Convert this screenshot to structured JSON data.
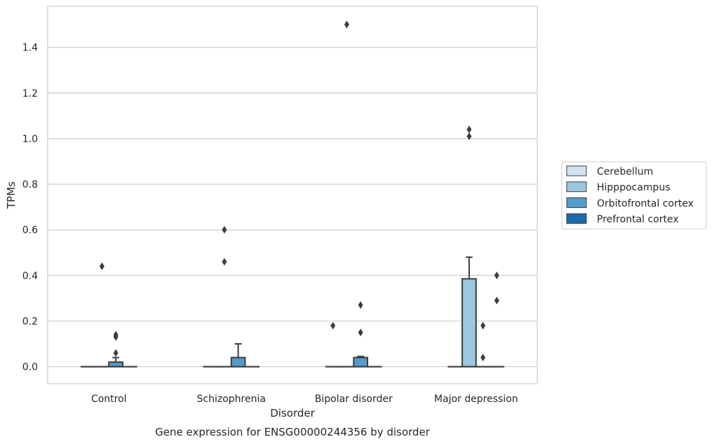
{
  "chart_data": {
    "type": "box",
    "xlabel": "Disorder",
    "ylabel": "TPMs",
    "caption": "Gene expression for ENSG00000244356 by disorder",
    "ylim": [
      -0.075,
      1.58
    ],
    "yticks": [
      "0.0",
      "0.2",
      "0.4",
      "0.6",
      "0.8",
      "1.0",
      "1.2",
      "1.4"
    ],
    "grid": "horizontal",
    "legend_position": "right",
    "categories": [
      "Control",
      "Schizophrenia",
      "Bipolar disorder",
      "Major depression"
    ],
    "series": [
      {
        "name": "Cerebellum",
        "color": "#d0e2f1",
        "boxes": [
          {
            "q1": 0,
            "median": 0,
            "q3": 0,
            "whisker_low": 0,
            "whisker_high": 0,
            "outliers": []
          },
          {
            "q1": 0,
            "median": 0,
            "q3": 0,
            "whisker_low": 0,
            "whisker_high": 0,
            "outliers": []
          },
          {
            "q1": 0,
            "median": 0,
            "q3": 0,
            "whisker_low": 0,
            "whisker_high": 0,
            "outliers": [
              0.18
            ]
          },
          {
            "q1": 0,
            "median": 0,
            "q3": 0,
            "whisker_low": 0,
            "whisker_high": 0,
            "outliers": []
          }
        ]
      },
      {
        "name": "Hipppocampus",
        "color": "#9ac8e0",
        "boxes": [
          {
            "q1": 0,
            "median": 0,
            "q3": 0,
            "whisker_low": 0,
            "whisker_high": 0,
            "outliers": [
              0.44
            ]
          },
          {
            "q1": 0,
            "median": 0,
            "q3": 0,
            "whisker_low": 0,
            "whisker_high": 0,
            "outliers": [
              0.46,
              0.6
            ]
          },
          {
            "q1": 0,
            "median": 0,
            "q3": 0,
            "whisker_low": 0,
            "whisker_high": 0,
            "outliers": [
              1.5
            ]
          },
          {
            "q1": 0,
            "median": 0,
            "q3": 0.385,
            "whisker_low": 0,
            "whisker_high": 0.48,
            "outliers": [
              1.01,
              1.04
            ]
          }
        ]
      },
      {
        "name": "Orbitofrontal cortex",
        "color": "#529dcc",
        "boxes": [
          {
            "q1": 0,
            "median": 0,
            "q3": 0.02,
            "whisker_low": 0,
            "whisker_high": 0.04,
            "outliers": [
              0.06,
              0.13,
              0.14
            ]
          },
          {
            "q1": 0,
            "median": 0,
            "q3": 0.04,
            "whisker_low": 0,
            "whisker_high": 0.1,
            "outliers": []
          },
          {
            "q1": 0,
            "median": 0,
            "q3": 0.04,
            "whisker_low": 0,
            "whisker_high": 0.045,
            "outliers": [
              0.15,
              0.27
            ]
          },
          {
            "q1": 0,
            "median": 0,
            "q3": 0,
            "whisker_low": 0,
            "whisker_high": 0,
            "outliers": [
              0.04,
              0.18
            ]
          }
        ]
      },
      {
        "name": "Prefrontal cortex",
        "color": "#1c6aaf",
        "boxes": [
          {
            "q1": 0,
            "median": 0,
            "q3": 0,
            "whisker_low": 0,
            "whisker_high": 0,
            "outliers": []
          },
          {
            "q1": 0,
            "median": 0,
            "q3": 0,
            "whisker_low": 0,
            "whisker_high": 0,
            "outliers": []
          },
          {
            "q1": 0,
            "median": 0,
            "q3": 0,
            "whisker_low": 0,
            "whisker_high": 0,
            "outliers": []
          },
          {
            "q1": 0,
            "median": 0,
            "q3": 0,
            "whisker_low": 0,
            "whisker_high": 0,
            "outliers": [
              0.29,
              0.4
            ]
          }
        ]
      }
    ]
  }
}
